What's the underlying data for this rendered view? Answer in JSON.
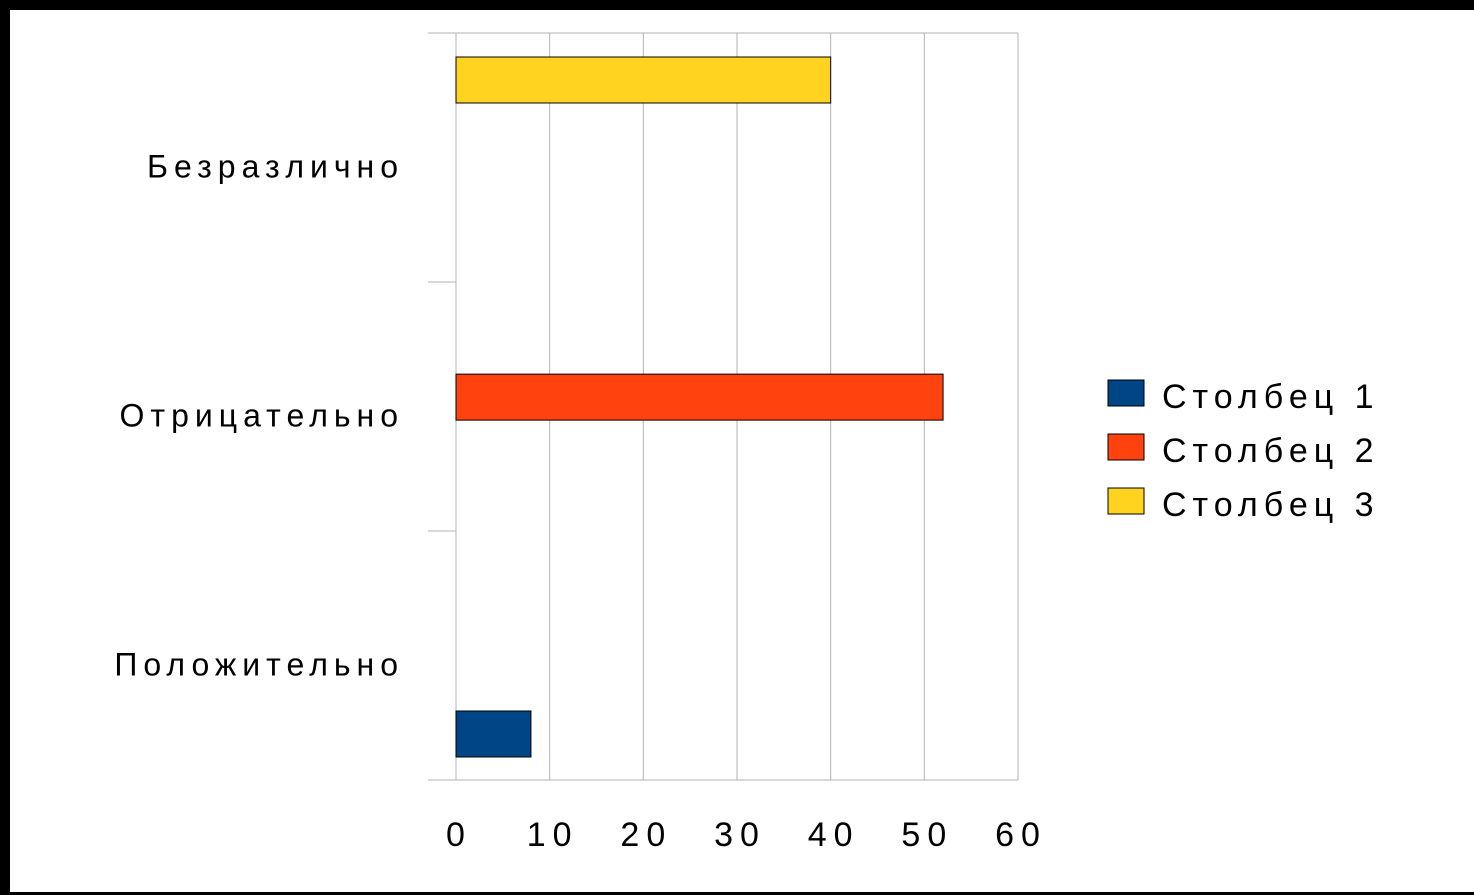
{
  "chart_data": {
    "type": "bar",
    "orientation": "horizontal",
    "categories": [
      "Положительно",
      "Отрицательно",
      "Безразлично"
    ],
    "series": [
      {
        "name": "Столбец 1",
        "color": "#004586",
        "values": [
          8,
          null,
          null
        ]
      },
      {
        "name": "Столбец 2",
        "color": "#ff420e",
        "values": [
          null,
          52,
          null
        ]
      },
      {
        "name": "Столбец 3",
        "color": "#ffd320",
        "values": [
          null,
          null,
          40
        ]
      }
    ],
    "xlim": [
      0,
      60
    ],
    "x_ticks": [
      "0",
      "10",
      "20",
      "30",
      "40",
      "50",
      "60"
    ],
    "grid": true,
    "legend": "right"
  }
}
